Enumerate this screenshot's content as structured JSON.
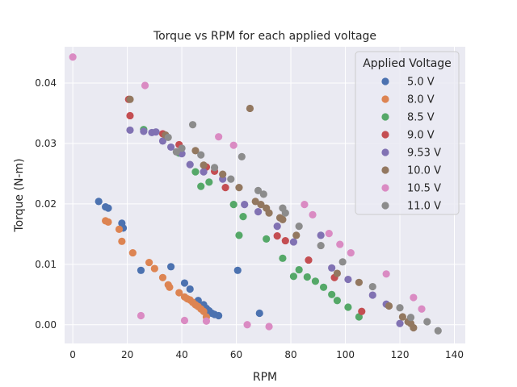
{
  "chart_data": {
    "type": "scatter",
    "title": "Torque vs RPM for each applied voltage",
    "xlabel": "RPM",
    "ylabel": "Torque (N-m)",
    "xlim": [
      -3,
      144
    ],
    "ylim": [
      -0.0031,
      0.046
    ],
    "xticks": [
      0,
      20,
      40,
      60,
      80,
      100,
      120,
      140
    ],
    "yticks": [
      0.0,
      0.01,
      0.02,
      0.03,
      0.04
    ],
    "ytick_labels": [
      "0.00",
      "0.01",
      "0.02",
      "0.03",
      "0.04"
    ],
    "grid": true,
    "background": "#eaeaf2",
    "legend": {
      "title": "Applied Voltage",
      "position": "top-right"
    },
    "series": [
      {
        "name": "5.0 V",
        "color": "#4c72b0",
        "points": [
          [
            9.5,
            0.0204
          ],
          [
            12,
            0.0195
          ],
          [
            13,
            0.0193
          ],
          [
            18,
            0.0168
          ],
          [
            18.5,
            0.016
          ],
          [
            25,
            0.009
          ],
          [
            36,
            0.0096
          ],
          [
            41,
            0.0069
          ],
          [
            43,
            0.0059
          ],
          [
            46,
            0.004
          ],
          [
            48,
            0.0033
          ],
          [
            49,
            0.0027
          ],
          [
            50,
            0.0023
          ],
          [
            51,
            0.0019
          ],
          [
            52,
            0.0017
          ],
          [
            53.5,
            0.0015
          ],
          [
            60.5,
            0.009
          ],
          [
            68.5,
            0.0019
          ]
        ]
      },
      {
        "name": "8.0 V",
        "color": "#dd8452",
        "points": [
          [
            12,
            0.0172
          ],
          [
            13,
            0.017
          ],
          [
            17,
            0.0158
          ],
          [
            18,
            0.0138
          ],
          [
            22,
            0.0119
          ],
          [
            28,
            0.0103
          ],
          [
            30,
            0.0093
          ],
          [
            33,
            0.0078
          ],
          [
            35,
            0.0066
          ],
          [
            35.5,
            0.0062
          ],
          [
            39,
            0.0053
          ],
          [
            41,
            0.0046
          ],
          [
            42,
            0.0043
          ],
          [
            43,
            0.0041
          ],
          [
            44,
            0.0037
          ],
          [
            45,
            0.0033
          ],
          [
            46,
            0.003
          ],
          [
            47,
            0.0026
          ],
          [
            48,
            0.0022
          ],
          [
            49,
            0.0013
          ]
        ]
      },
      {
        "name": "8.5 V",
        "color": "#55a868",
        "points": [
          [
            26,
            0.0323
          ],
          [
            39,
            0.0284
          ],
          [
            45,
            0.0253
          ],
          [
            47,
            0.0229
          ],
          [
            50,
            0.0236
          ],
          [
            59,
            0.0199
          ],
          [
            61,
            0.0148
          ],
          [
            62.5,
            0.0179
          ],
          [
            71,
            0.0142
          ],
          [
            77,
            0.011
          ],
          [
            81,
            0.008
          ],
          [
            83,
            0.0091
          ],
          [
            86,
            0.0079
          ],
          [
            89,
            0.0072
          ],
          [
            92,
            0.0062
          ],
          [
            95,
            0.005
          ],
          [
            97,
            0.004
          ],
          [
            101,
            0.0029
          ],
          [
            105,
            0.0013
          ]
        ]
      },
      {
        "name": "9.0 V",
        "color": "#c44e52",
        "points": [
          [
            20.5,
            0.0373
          ],
          [
            21,
            0.0346
          ],
          [
            33,
            0.0316
          ],
          [
            39,
            0.0298
          ],
          [
            49,
            0.0261
          ],
          [
            52,
            0.0254
          ],
          [
            56,
            0.0227
          ],
          [
            75,
            0.0147
          ],
          [
            78,
            0.0139
          ],
          [
            86.5,
            0.0107
          ],
          [
            96,
            0.0078
          ],
          [
            106,
            0.0022
          ]
        ]
      },
      {
        "name": "9.53 V",
        "color": "#8172b3",
        "points": [
          [
            21,
            0.0322
          ],
          [
            26,
            0.032
          ],
          [
            29,
            0.0318
          ],
          [
            30.5,
            0.0319
          ],
          [
            33,
            0.0304
          ],
          [
            36,
            0.0294
          ],
          [
            40,
            0.0283
          ],
          [
            43,
            0.0265
          ],
          [
            48,
            0.0253
          ],
          [
            55,
            0.0241
          ],
          [
            63,
            0.0199
          ],
          [
            68,
            0.0187
          ],
          [
            75,
            0.0163
          ],
          [
            81,
            0.0137
          ],
          [
            91,
            0.0148
          ],
          [
            95,
            0.0094
          ],
          [
            101,
            0.0075
          ],
          [
            110,
            0.0049
          ],
          [
            115,
            0.0034
          ],
          [
            120,
            0.0002
          ]
        ]
      },
      {
        "name": "10.0 V",
        "color": "#937860",
        "points": [
          [
            21,
            0.0373
          ],
          [
            34,
            0.0314
          ],
          [
            45,
            0.0288
          ],
          [
            48,
            0.0264
          ],
          [
            55,
            0.0249
          ],
          [
            61,
            0.0227
          ],
          [
            65,
            0.0358
          ],
          [
            67,
            0.0204
          ],
          [
            69,
            0.0199
          ],
          [
            71,
            0.0193
          ],
          [
            72,
            0.0185
          ],
          [
            76,
            0.0177
          ],
          [
            77,
            0.0174
          ],
          [
            82,
            0.0148
          ],
          [
            97,
            0.0085
          ],
          [
            105,
            0.007
          ],
          [
            116,
            0.0031
          ],
          [
            121,
            0.0013
          ],
          [
            123,
            0.0005
          ],
          [
            124,
            0.0002
          ],
          [
            125,
            -0.0005
          ]
        ]
      },
      {
        "name": "10.5 V",
        "color": "#da8bc3",
        "points": [
          [
            0,
            0.0443
          ],
          [
            25,
            0.0015
          ],
          [
            26.5,
            0.0396
          ],
          [
            41,
            0.0007
          ],
          [
            49,
            0.0006
          ],
          [
            53.5,
            0.0311
          ],
          [
            59,
            0.0297
          ],
          [
            64,
            0.0
          ],
          [
            72,
            -0.0003
          ],
          [
            85,
            0.0199
          ],
          [
            88,
            0.0182
          ],
          [
            94,
            0.0151
          ],
          [
            98,
            0.0133
          ],
          [
            102,
            0.0119
          ],
          [
            115,
            0.0084
          ],
          [
            125,
            0.0045
          ],
          [
            128,
            0.0026
          ]
        ]
      },
      {
        "name": "11.0 V",
        "color": "#8c8c8c",
        "points": [
          [
            35,
            0.031
          ],
          [
            38,
            0.0286
          ],
          [
            40,
            0.0292
          ],
          [
            44,
            0.0331
          ],
          [
            47,
            0.0281
          ],
          [
            52,
            0.026
          ],
          [
            58,
            0.0241
          ],
          [
            62,
            0.0278
          ],
          [
            68,
            0.0222
          ],
          [
            70,
            0.0216
          ],
          [
            77,
            0.0193
          ],
          [
            78,
            0.0185
          ],
          [
            83,
            0.0163
          ],
          [
            91,
            0.0131
          ],
          [
            99,
            0.0104
          ],
          [
            110,
            0.0063
          ],
          [
            120,
            0.0028
          ],
          [
            124,
            0.0012
          ],
          [
            130,
            0.0005
          ],
          [
            134,
            -0.001
          ]
        ]
      }
    ]
  }
}
